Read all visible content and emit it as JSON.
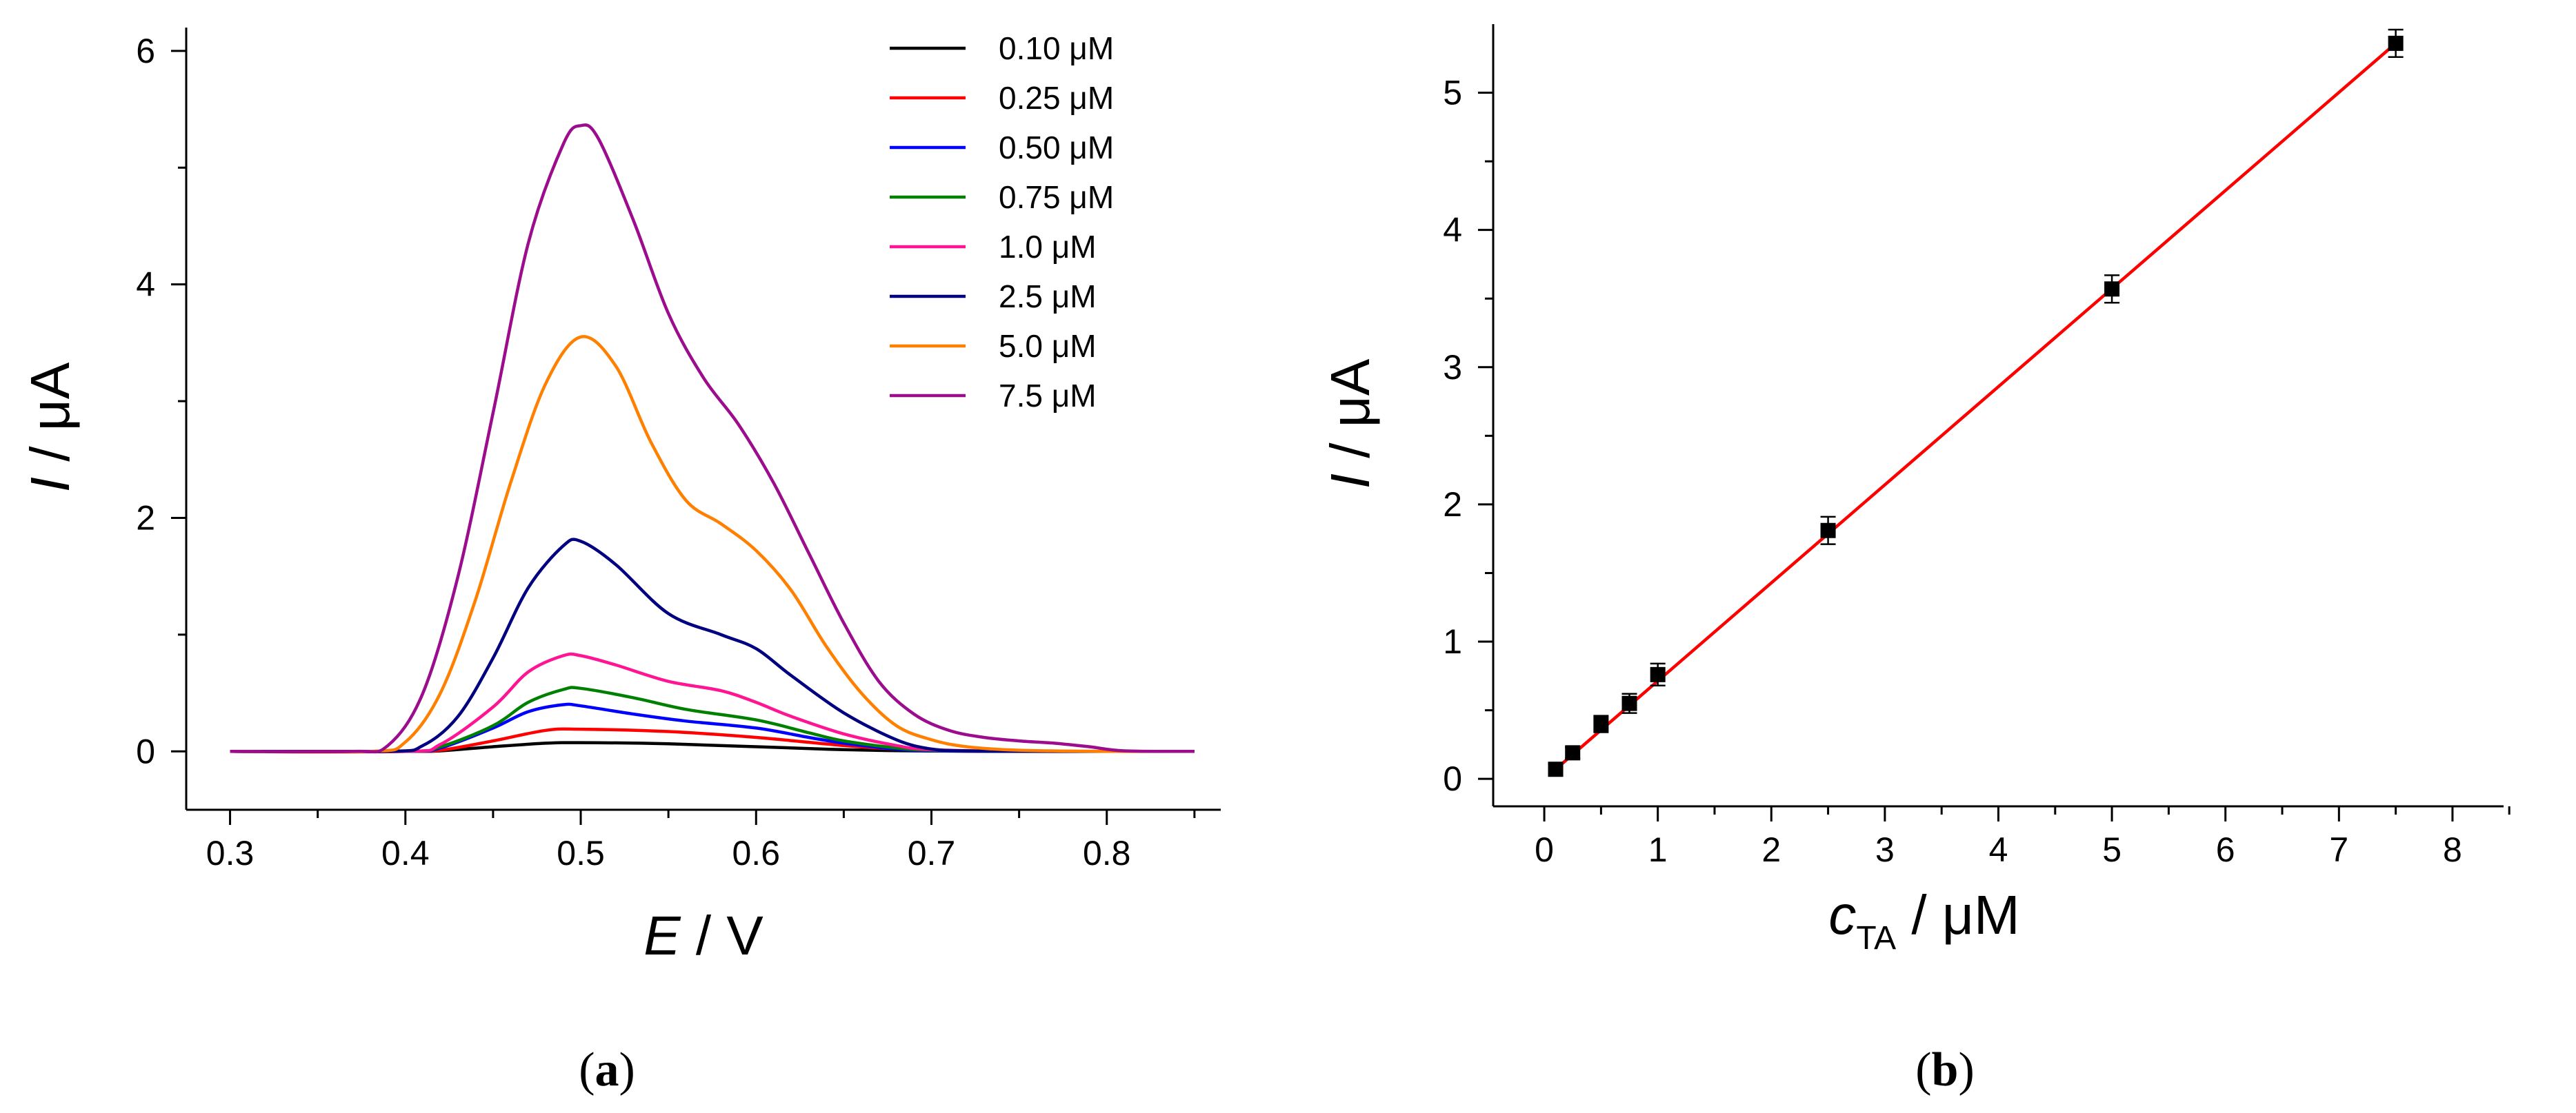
{
  "panels": {
    "a": {
      "label_open": "(",
      "label_letter": "a",
      "label_close": ")"
    },
    "b": {
      "label_open": "(",
      "label_letter": "b",
      "label_close": ")"
    }
  },
  "chart_data": [
    {
      "type": "line",
      "panel": "a",
      "xlabel_var": "E",
      "xlabel_unit": " / V",
      "ylabel_var": "I",
      "ylabel_unit": " / μA",
      "xlim": [
        0.275,
        0.865
      ],
      "ylim": [
        -0.5,
        6.2
      ],
      "xticks": [
        0.3,
        0.4,
        0.5,
        0.6,
        0.7,
        0.8
      ],
      "xtick_labels": [
        "0.3",
        "0.4",
        "0.5",
        "0.6",
        "0.7",
        "0.8"
      ],
      "yticks": [
        0,
        2,
        4,
        6
      ],
      "ytick_labels": [
        "0",
        "2",
        "4",
        "6"
      ],
      "legend_position": "top-right",
      "series": [
        {
          "name": "0.10 μM",
          "color": "#000000",
          "x": [
            0.3,
            0.4,
            0.42,
            0.45,
            0.48,
            0.5,
            0.55,
            0.6,
            0.65,
            0.7,
            0.75,
            0.8,
            0.85
          ],
          "y": [
            0,
            0,
            0.005,
            0.04,
            0.07,
            0.075,
            0.065,
            0.04,
            0.015,
            0.003,
            0,
            0,
            0
          ]
        },
        {
          "name": "0.25 μM",
          "color": "#ff0000",
          "x": [
            0.3,
            0.4,
            0.42,
            0.45,
            0.48,
            0.5,
            0.55,
            0.6,
            0.65,
            0.68,
            0.7,
            0.75,
            0.8,
            0.85
          ],
          "y": [
            0,
            0,
            0.01,
            0.09,
            0.18,
            0.19,
            0.17,
            0.12,
            0.05,
            0.02,
            0.005,
            0,
            0,
            0
          ]
        },
        {
          "name": "0.50 μM",
          "color": "#0000ff",
          "x": [
            0.3,
            0.4,
            0.42,
            0.45,
            0.47,
            0.49,
            0.5,
            0.53,
            0.56,
            0.6,
            0.63,
            0.65,
            0.68,
            0.7,
            0.75,
            0.8,
            0.85
          ],
          "y": [
            0,
            0,
            0.03,
            0.2,
            0.34,
            0.4,
            0.39,
            0.32,
            0.26,
            0.2,
            0.12,
            0.07,
            0.02,
            0.005,
            0,
            0,
            0
          ]
        },
        {
          "name": "0.75 μM",
          "color": "#008000",
          "x": [
            0.3,
            0.4,
            0.42,
            0.45,
            0.47,
            0.49,
            0.5,
            0.53,
            0.56,
            0.6,
            0.63,
            0.65,
            0.68,
            0.7,
            0.75,
            0.8,
            0.85
          ],
          "y": [
            0,
            0,
            0.04,
            0.22,
            0.42,
            0.53,
            0.54,
            0.46,
            0.36,
            0.27,
            0.16,
            0.09,
            0.03,
            0.01,
            0,
            0,
            0
          ]
        },
        {
          "name": "1.0 μM",
          "color": "#ff1493",
          "x": [
            0.3,
            0.4,
            0.42,
            0.45,
            0.47,
            0.49,
            0.5,
            0.52,
            0.55,
            0.58,
            0.6,
            0.62,
            0.65,
            0.68,
            0.7,
            0.75,
            0.8,
            0.85
          ],
          "y": [
            0,
            0,
            0.06,
            0.38,
            0.68,
            0.82,
            0.82,
            0.74,
            0.6,
            0.52,
            0.42,
            0.3,
            0.15,
            0.05,
            0.015,
            0,
            0,
            0
          ]
        },
        {
          "name": "2.5 μM",
          "color": "#000080",
          "x": [
            0.3,
            0.39,
            0.41,
            0.43,
            0.45,
            0.47,
            0.49,
            0.5,
            0.52,
            0.55,
            0.58,
            0.6,
            0.62,
            0.65,
            0.68,
            0.7,
            0.72,
            0.75,
            0.8,
            0.85
          ],
          "y": [
            0,
            0,
            0.05,
            0.3,
            0.8,
            1.4,
            1.76,
            1.8,
            1.6,
            1.18,
            1.0,
            0.88,
            0.65,
            0.33,
            0.1,
            0.02,
            0.005,
            0,
            0,
            0
          ]
        },
        {
          "name": "5.0 μM",
          "color": "#ff8000",
          "x": [
            0.3,
            0.38,
            0.4,
            0.42,
            0.44,
            0.46,
            0.48,
            0.5,
            0.52,
            0.54,
            0.56,
            0.58,
            0.6,
            0.62,
            0.64,
            0.66,
            0.68,
            0.7,
            0.72,
            0.75,
            0.8,
            0.85
          ],
          "y": [
            0,
            0,
            0.08,
            0.5,
            1.3,
            2.3,
            3.15,
            3.55,
            3.3,
            2.65,
            2.15,
            1.95,
            1.72,
            1.38,
            0.9,
            0.5,
            0.22,
            0.1,
            0.04,
            0.01,
            0,
            0
          ]
        },
        {
          "name": "7.5 μM",
          "color": "#9b0d8c",
          "x": [
            0.3,
            0.37,
            0.39,
            0.41,
            0.43,
            0.45,
            0.47,
            0.49,
            0.5,
            0.51,
            0.53,
            0.55,
            0.57,
            0.59,
            0.61,
            0.63,
            0.65,
            0.67,
            0.69,
            0.71,
            0.73,
            0.75,
            0.77,
            0.79,
            0.81,
            0.85
          ],
          "y": [
            0,
            0,
            0.05,
            0.5,
            1.5,
            2.9,
            4.35,
            5.2,
            5.36,
            5.25,
            4.55,
            3.75,
            3.2,
            2.8,
            2.3,
            1.7,
            1.1,
            0.6,
            0.32,
            0.18,
            0.12,
            0.09,
            0.07,
            0.04,
            0.005,
            0
          ]
        }
      ]
    },
    {
      "type": "scatter",
      "panel": "b",
      "xlabel_var": "c",
      "xlabel_sub": "TA",
      "xlabel_unit": " / μM",
      "ylabel_var": "I",
      "ylabel_unit": " / μA",
      "xlim": [
        -0.45,
        8.45
      ],
      "ylim": [
        -0.2,
        5.5
      ],
      "xticks": [
        0,
        1,
        2,
        3,
        4,
        5,
        6,
        7,
        8
      ],
      "xtick_labels": [
        "0",
        "1",
        "2",
        "3",
        "4",
        "5",
        "6",
        "7",
        "8"
      ],
      "yticks": [
        0,
        1,
        2,
        3,
        4,
        5
      ],
      "ytick_labels": [
        "0",
        "1",
        "2",
        "3",
        "4",
        "5"
      ],
      "points": {
        "x": [
          0.1,
          0.25,
          0.5,
          0.75,
          1.0,
          2.5,
          5.0,
          7.5
        ],
        "y": [
          0.07,
          0.19,
          0.4,
          0.55,
          0.76,
          1.81,
          3.57,
          5.36
        ],
        "yerr": [
          0.04,
          0.04,
          0.06,
          0.07,
          0.08,
          0.1,
          0.1,
          0.1
        ],
        "color": "#000000"
      },
      "fit": {
        "x": [
          0.1,
          7.5
        ],
        "y": [
          0.07,
          5.36
        ],
        "color": "#ff0000"
      }
    }
  ]
}
